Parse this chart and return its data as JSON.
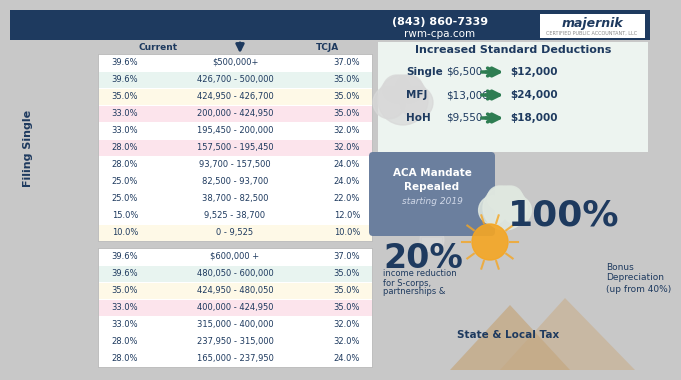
{
  "bg_color": "#c8c8c8",
  "header_bg": "#1e3a5f",
  "phone": "(843) 860-7339",
  "website": "rwm-cpa.com",
  "majernik_text": "majernik",
  "majernik_sub": "CERTIFIED PUBLIC ACCOUNTANT, LLC",
  "title_current": "Current",
  "title_tcja": "TCJA",
  "filing_single_label": "Filing Single",
  "single_rows": [
    {
      "current": "39.6%",
      "range": "$500,000+",
      "tcja": "37.0%",
      "row_color": "#ffffff"
    },
    {
      "current": "39.6%",
      "range": "426,700 - 500,000",
      "tcja": "35.0%",
      "row_color": "#e8f4f0"
    },
    {
      "current": "35.0%",
      "range": "424,950 - 426,700",
      "tcja": "35.0%",
      "row_color": "#fef9e7"
    },
    {
      "current": "33.0%",
      "range": "200,000 - 424,950",
      "tcja": "35.0%",
      "row_color": "#fce4ec"
    },
    {
      "current": "33.0%",
      "range": "195,450 - 200,000",
      "tcja": "32.0%",
      "row_color": "#ffffff"
    },
    {
      "current": "28.0%",
      "range": "157,500 - 195,450",
      "tcja": "32.0%",
      "row_color": "#fce4ec"
    },
    {
      "current": "28.0%",
      "range": "93,700 - 157,500",
      "tcja": "24.0%",
      "row_color": "#ffffff"
    },
    {
      "current": "25.0%",
      "range": "82,500 - 93,700",
      "tcja": "24.0%",
      "row_color": "#ffffff"
    },
    {
      "current": "25.0%",
      "range": "38,700 - 82,500",
      "tcja": "22.0%",
      "row_color": "#ffffff"
    },
    {
      "current": "15.0%",
      "range": "9,525 - 38,700",
      "tcja": "12.0%",
      "row_color": "#ffffff"
    },
    {
      "current": "10.0%",
      "range": "0 - 9,525",
      "tcja": "10.0%",
      "row_color": "#fef9e7"
    }
  ],
  "mfj_rows": [
    {
      "current": "39.6%",
      "range": "$600,000 +",
      "tcja": "37.0%",
      "row_color": "#ffffff"
    },
    {
      "current": "39.6%",
      "range": "480,050 - 600,000",
      "tcja": "35.0%",
      "row_color": "#e8f4f0"
    },
    {
      "current": "35.0%",
      "range": "424,950 - 480,050",
      "tcja": "35.0%",
      "row_color": "#fef9e7"
    },
    {
      "current": "33.0%",
      "range": "400,000 - 424,950",
      "tcja": "35.0%",
      "row_color": "#fce4ec"
    },
    {
      "current": "33.0%",
      "range": "315,000 - 400,000",
      "tcja": "32.0%",
      "row_color": "#ffffff"
    },
    {
      "current": "28.0%",
      "range": "237,950 - 315,000",
      "tcja": "32.0%",
      "row_color": "#ffffff"
    },
    {
      "current": "28.0%",
      "range": "165,000 - 237,950",
      "tcja": "24.0%",
      "row_color": "#ffffff"
    }
  ],
  "isd_title": "Increased Standard Deductions",
  "isd_rows": [
    {
      "label": "Single",
      "from": "$6,500",
      "to": "$12,000"
    },
    {
      "label": "MFJ",
      "from": "$13,000",
      "to": "$24,000"
    },
    {
      "label": "HoH",
      "from": "$9,550",
      "to": "$18,000"
    }
  ],
  "aca_title1": "ACA Mandate",
  "aca_title2": "Repealed",
  "aca_subtitle": "starting 2019",
  "pct20": "20%",
  "pct20_sub1": "income reduction",
  "pct20_sub2": "for S-corps,",
  "pct20_sub3": "partnerships &",
  "pct100": "100%",
  "pct100_sub1": "Bonus",
  "pct100_sub2": "Depreciation",
  "pct100_sub3": "(up from 40%)",
  "salt_title1": "State & Local Tax",
  "dark_navy": "#1e3a5f",
  "table_border": "#b0b0b0",
  "cloud_color": "#d8d8d8",
  "arrow_color": "#2e7d52",
  "aca_box_color": "#6b7f9e",
  "sun_color": "#f5a623",
  "mountain1_color": "#c4a882",
  "mountain2_color": "#c8b090"
}
